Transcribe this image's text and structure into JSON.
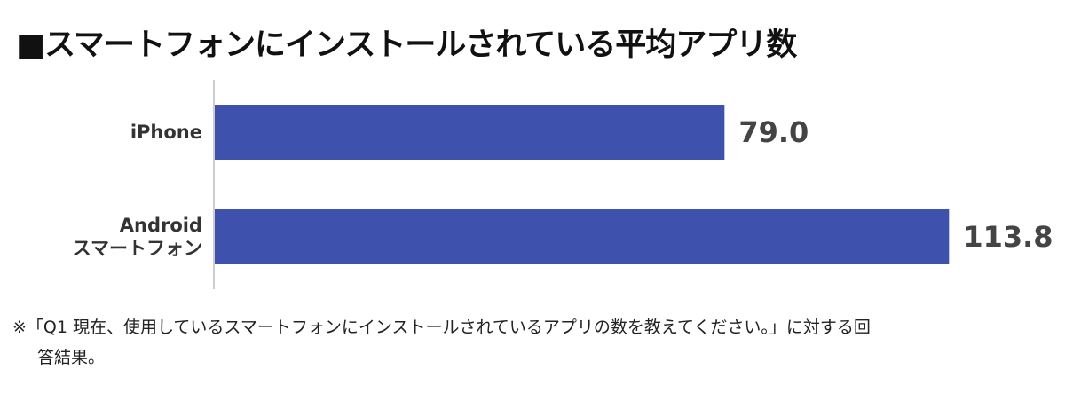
{
  "title": "■スマートフォンにインストールされている平均アプリ数",
  "chart_data": {
    "type": "bar",
    "orientation": "horizontal",
    "title": "■スマートフォンにインストールされている平均アプリ数",
    "categories": [
      [
        "iPhone"
      ],
      [
        "Android",
        "スマートフォン"
      ]
    ],
    "values": [
      79.0,
      113.8
    ],
    "value_labels": [
      "79.0",
      "113.8"
    ],
    "xlim": [
      0,
      120
    ],
    "grid": false,
    "bar_color": "#3d51ad"
  },
  "note": {
    "line1": "※「Q1 現在、使用しているスマートフォンにインストールされているアプリの数を教えてください。」に対する回",
    "line2": "答結果。"
  }
}
